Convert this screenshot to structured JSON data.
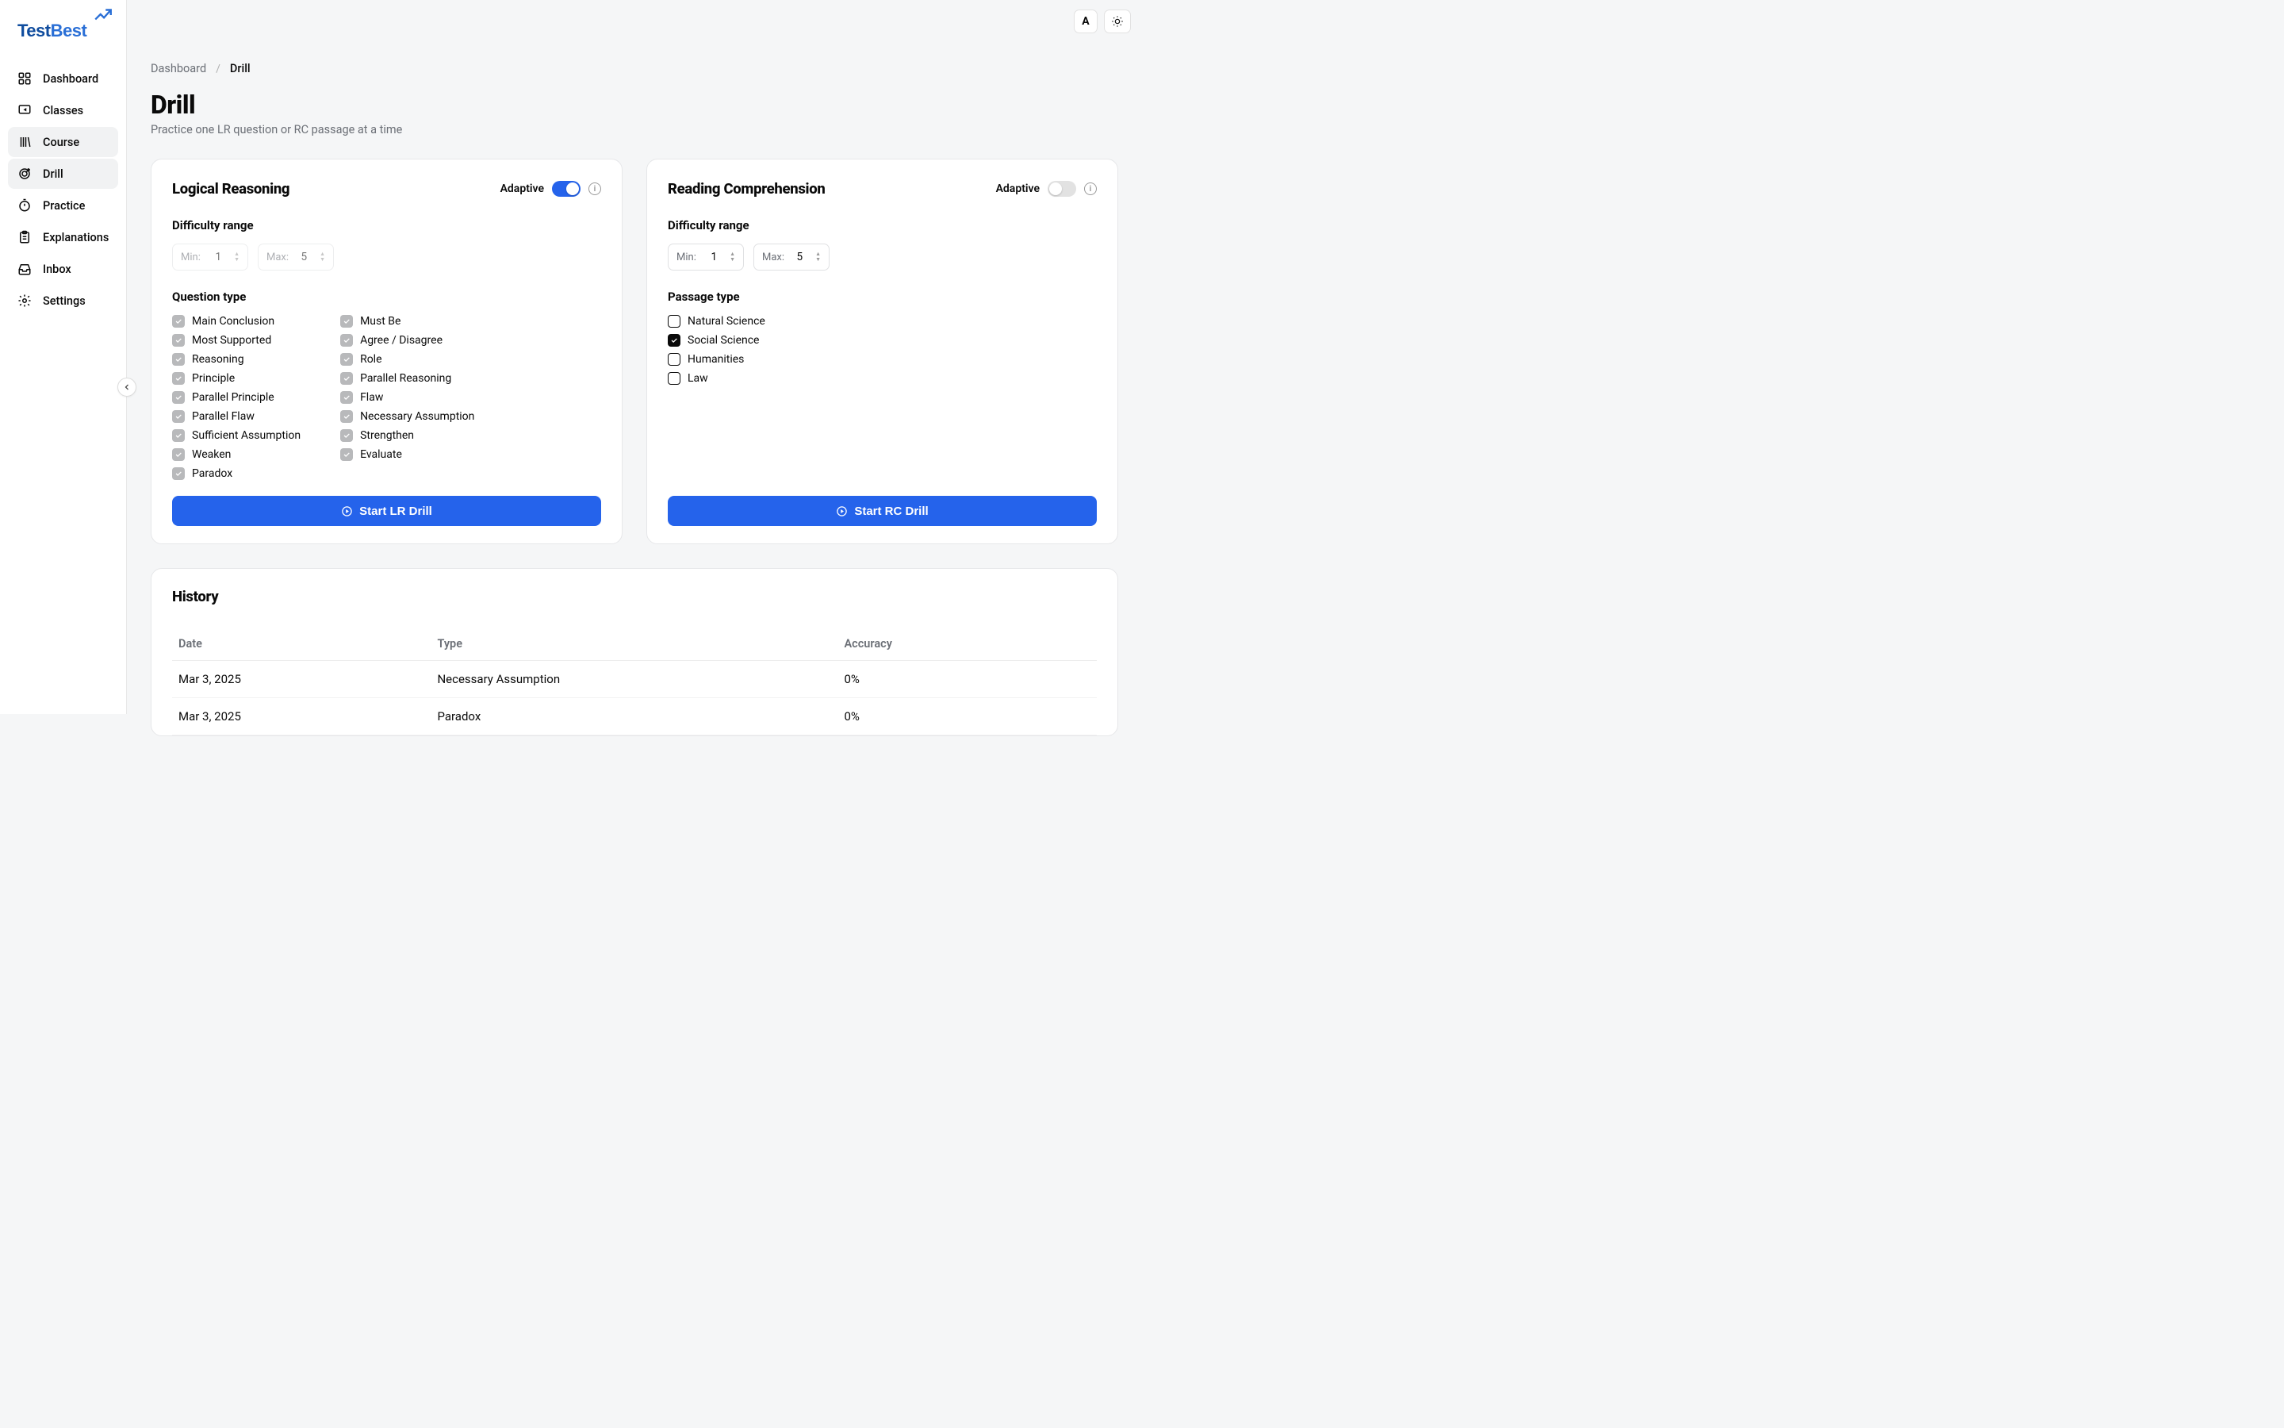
{
  "logo": {
    "part1": "Test",
    "part2": "Best"
  },
  "topControls": {
    "avatarLetter": "A"
  },
  "sidebar": {
    "items": [
      {
        "label": "Dashboard",
        "icon": "dashboard",
        "active": false
      },
      {
        "label": "Classes",
        "icon": "screen",
        "active": false
      },
      {
        "label": "Course",
        "icon": "book",
        "active": true
      },
      {
        "label": "Drill",
        "icon": "target",
        "active": true
      },
      {
        "label": "Practice",
        "icon": "stopwatch",
        "active": false
      },
      {
        "label": "Explanations",
        "icon": "clipboard",
        "active": false
      },
      {
        "label": "Inbox",
        "icon": "inbox",
        "active": false
      },
      {
        "label": "Settings",
        "icon": "gear",
        "active": false
      }
    ]
  },
  "breadcrumb": {
    "root": "Dashboard",
    "current": "Drill"
  },
  "page": {
    "title": "Drill",
    "subtitle": "Practice one LR question or RC passage at a time"
  },
  "lr": {
    "title": "Logical Reasoning",
    "adaptiveLabel": "Adaptive",
    "adaptiveOn": true,
    "difficultyLabel": "Difficulty range",
    "min": {
      "label": "Min:",
      "value": "1"
    },
    "max": {
      "label": "Max:",
      "value": "5"
    },
    "questionTypeLabel": "Question type",
    "typesLeft": [
      "Main Conclusion",
      "Most Supported",
      "Reasoning",
      "Principle",
      "Parallel Principle",
      "Parallel Flaw",
      "Sufficient Assumption",
      "Weaken",
      "Paradox"
    ],
    "typesRight": [
      "Must Be",
      "Agree / Disagree",
      "Role",
      "Parallel Reasoning",
      "Flaw",
      "Necessary Assumption",
      "Strengthen",
      "Evaluate"
    ],
    "buttonLabel": "Start LR Drill"
  },
  "rc": {
    "title": "Reading Comprehension",
    "adaptiveLabel": "Adaptive",
    "adaptiveOn": false,
    "difficultyLabel": "Difficulty range",
    "min": {
      "label": "Min:",
      "value": "1"
    },
    "max": {
      "label": "Max:",
      "value": "5"
    },
    "passageTypeLabel": "Passage type",
    "passageTypes": [
      {
        "label": "Natural Science",
        "checked": false
      },
      {
        "label": "Social Science",
        "checked": true
      },
      {
        "label": "Humanities",
        "checked": false
      },
      {
        "label": "Law",
        "checked": false
      }
    ],
    "buttonLabel": "Start RC Drill"
  },
  "history": {
    "title": "History",
    "columns": [
      "Date",
      "Type",
      "Accuracy"
    ],
    "rows": [
      {
        "date": "Mar 3, 2025",
        "type": "Necessary Assumption",
        "accuracy": "0%"
      },
      {
        "date": "Mar 3, 2025",
        "type": "Paradox",
        "accuracy": "0%"
      }
    ]
  },
  "colors": {
    "accent": "#2563eb",
    "accentDark": "#0f4c9e",
    "bg": "#f5f6f7",
    "border": "#e6e7e9",
    "muted": "#6b6f76",
    "greyCheck": "#b8b9bb"
  }
}
